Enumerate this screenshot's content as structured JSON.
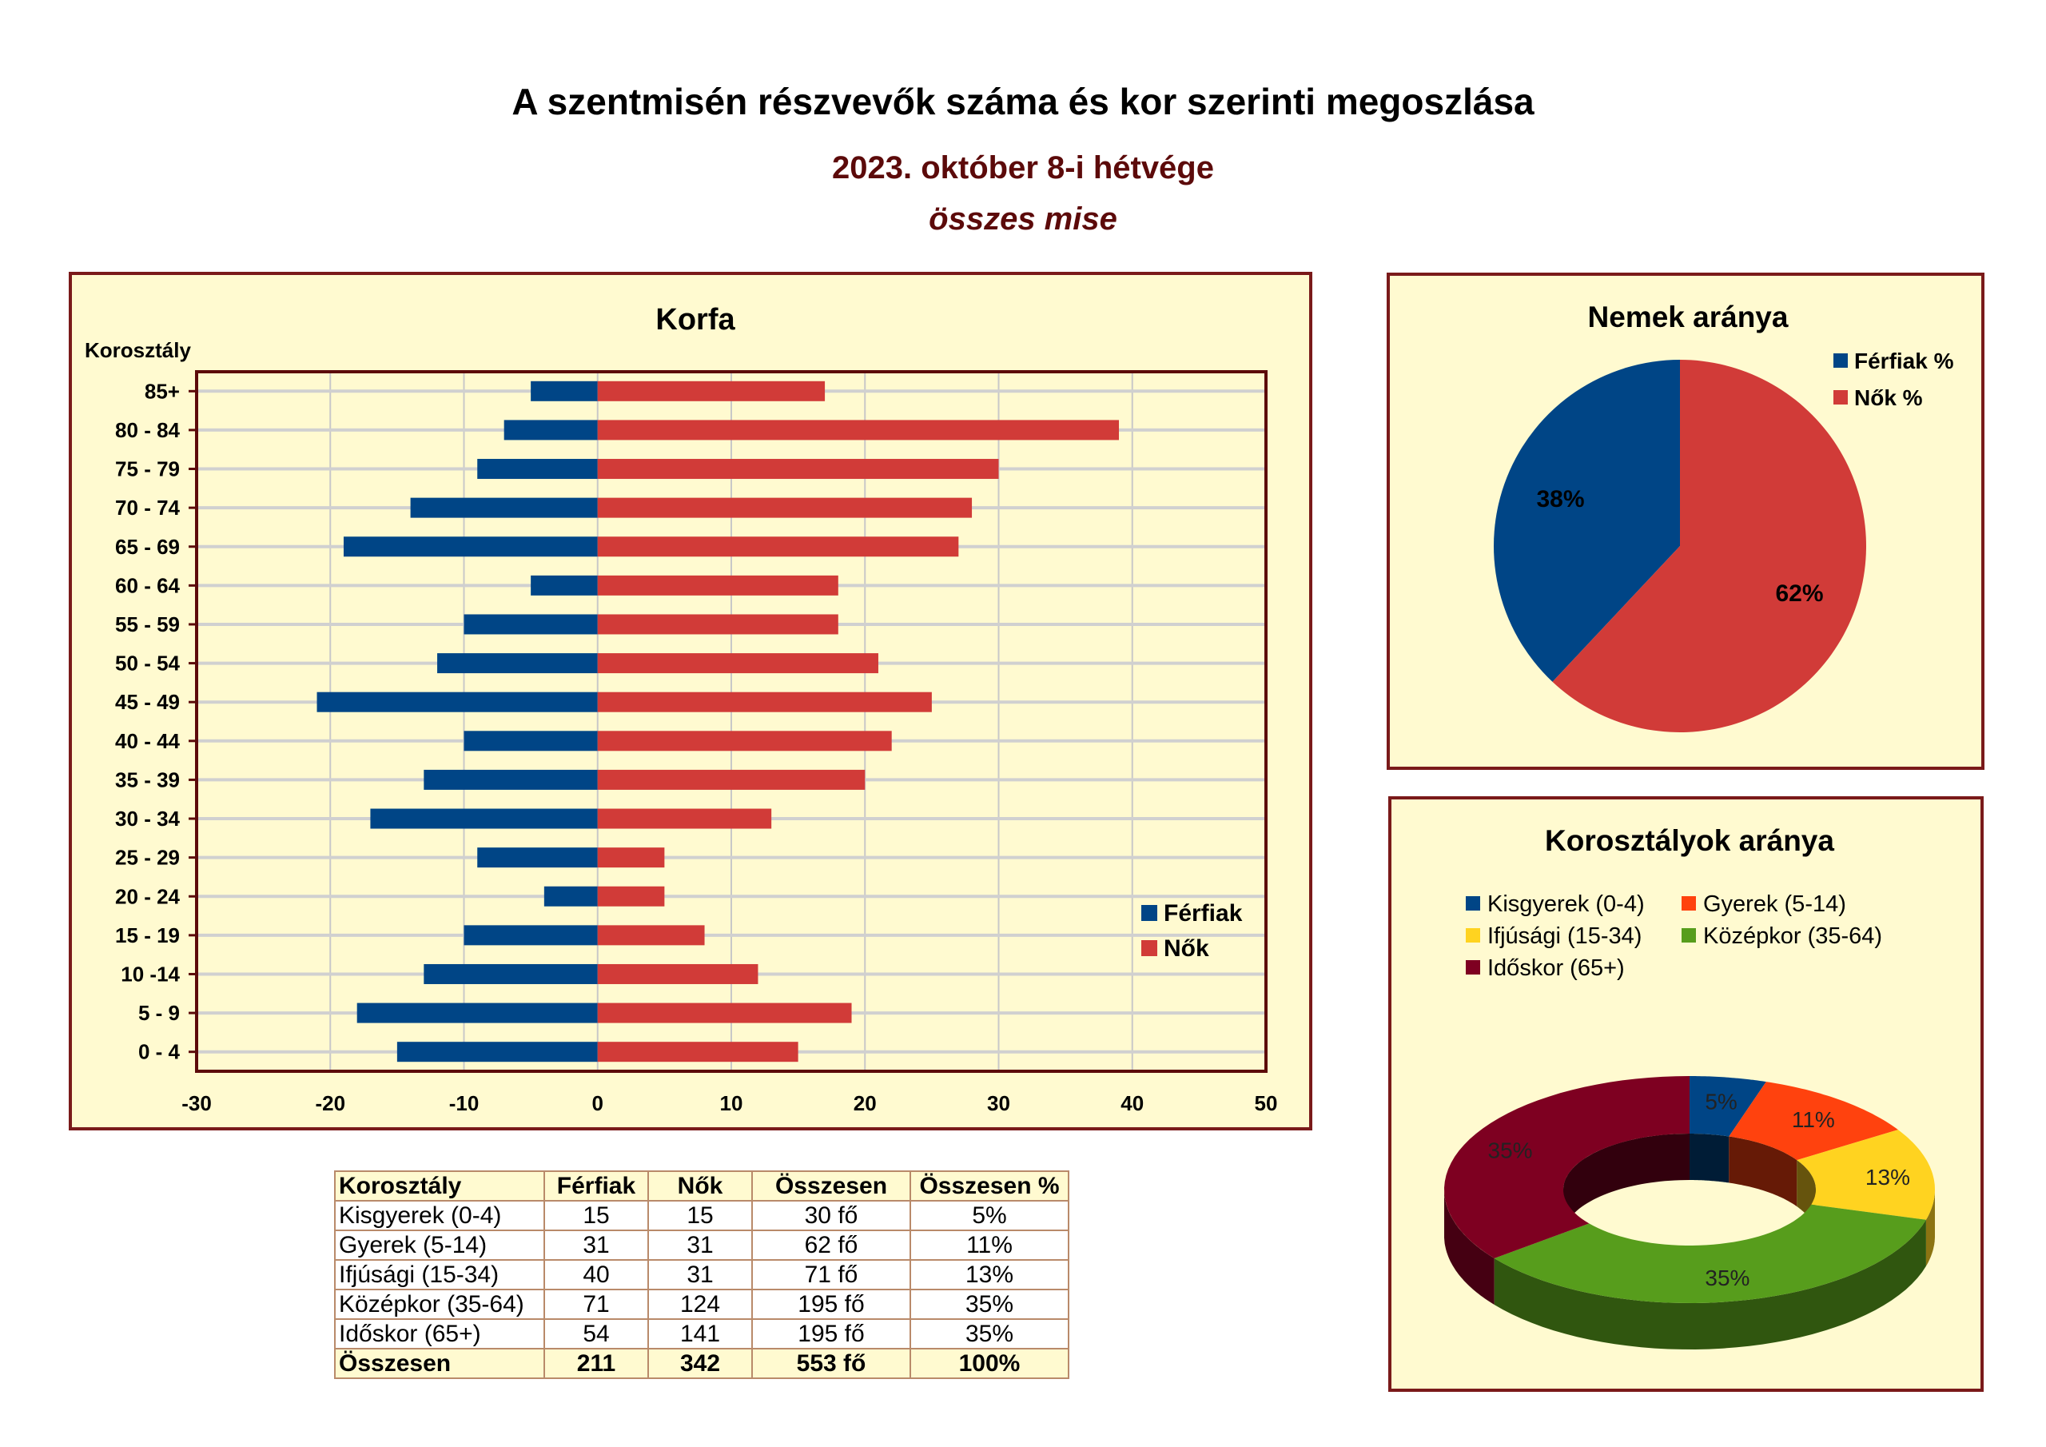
{
  "header": {
    "title": "A szentmisén részvevők száma és kor szerinti megoszlása",
    "subtitle": "2023. október 8-i hétvége",
    "subtitle2": "összes mise"
  },
  "colors": {
    "male": "#004586",
    "female": "#d13b38",
    "panel_bg": "#fffad0",
    "border": "#7a1a1a"
  },
  "chart_data": [
    {
      "type": "bar",
      "orientation": "horizontal",
      "title": "Korfa",
      "ylabel": "Korosztály",
      "categories": [
        "85+",
        "80 - 84",
        "75 - 79",
        "70 - 74",
        "65 - 69",
        "60 - 64",
        "55 - 59",
        "50 - 54",
        "45 - 49",
        "40 - 44",
        "35 - 39",
        "30 - 34",
        "25 - 29",
        "20 - 24",
        "15 - 19",
        "10 -14",
        "5 - 9",
        "0 - 4"
      ],
      "series": [
        {
          "name": "Férfiak",
          "color": "#004586",
          "values": [
            -5,
            -7,
            -9,
            -14,
            -19,
            -5,
            -10,
            -12,
            -21,
            -10,
            -13,
            -17,
            -9,
            -4,
            -10,
            -13,
            -18,
            -15
          ]
        },
        {
          "name": "Nők",
          "color": "#d13b38",
          "values": [
            17,
            39,
            30,
            28,
            27,
            18,
            18,
            21,
            25,
            22,
            20,
            13,
            5,
            5,
            8,
            12,
            19,
            15
          ]
        }
      ],
      "xlim": [
        -30,
        50
      ],
      "xticks": [
        -30,
        -20,
        -10,
        0,
        10,
        20,
        30,
        40,
        50
      ],
      "grid": true,
      "legend": "bottom-right"
    },
    {
      "type": "pie",
      "title": "Nemek aránya",
      "labels": [
        "Férfiak %",
        "Nők %"
      ],
      "values": [
        38,
        62
      ],
      "data_labels": [
        "38%",
        "62%"
      ],
      "colors": [
        "#004586",
        "#d13b38"
      ],
      "legend": "top-right"
    },
    {
      "type": "pie",
      "style": "3d-donut",
      "title": "Korosztályok aránya",
      "labels": [
        "Kisgyerek (0-4)",
        "Gyerek (5-14)",
        "Ifjúsági (15-34)",
        "Középkor (35-64)",
        "Időskor (65+)"
      ],
      "values": [
        5,
        11,
        13,
        35,
        35
      ],
      "data_labels": [
        "5%",
        "11%",
        "13%",
        "35%",
        "35%"
      ],
      "colors": [
        "#004586",
        "#ff420e",
        "#ffd320",
        "#579d1c",
        "#7e0021"
      ],
      "legend": "top"
    }
  ],
  "table": {
    "headers": [
      "Korosztály",
      "Férfiak",
      "Nők",
      "Összesen",
      "Összesen %"
    ],
    "rows": [
      [
        "Kisgyerek (0-4)",
        "15",
        "15",
        "30 fő",
        "5%"
      ],
      [
        "Gyerek (5-14)",
        "31",
        "31",
        "62 fő",
        "11%"
      ],
      [
        "Ifjúsági (15-34)",
        "40",
        "31",
        "71 fő",
        "13%"
      ],
      [
        "Középkor (35-64)",
        "71",
        "124",
        "195 fő",
        "35%"
      ],
      [
        "Időskor (65+)",
        "54",
        "141",
        "195 fő",
        "35%"
      ]
    ],
    "total": [
      "Összesen",
      "211",
      "342",
      "553 fő",
      "100%"
    ]
  }
}
